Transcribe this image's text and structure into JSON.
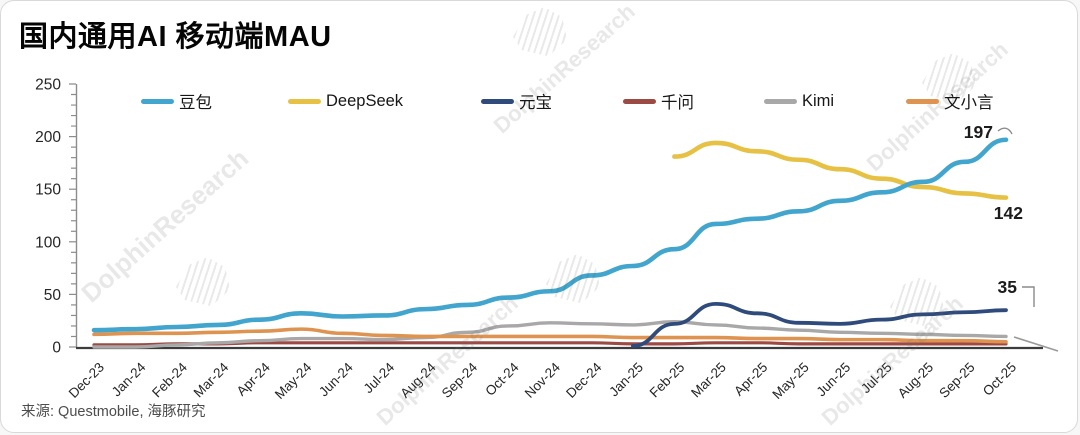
{
  "title": "国内通用AI 移动端MAU",
  "source": "来源: Questmobile, 海豚研究",
  "watermark": {
    "text": "DolphinResearch"
  },
  "chart_data": {
    "type": "line",
    "title": "国内通用AI 移动端MAU",
    "xlabel": "",
    "ylabel": "",
    "ylim": [
      0,
      250
    ],
    "yticks": [
      0,
      50,
      100,
      150,
      200,
      250
    ],
    "grid": false,
    "legend_position": "top",
    "categories": [
      "Dec-23",
      "Jan-24",
      "Feb-24",
      "Mar-24",
      "Apr-24",
      "May-24",
      "Jun-24",
      "Jul-24",
      "Aug-24",
      "Sep-24",
      "Oct-24",
      "Nov-24",
      "Dec-24",
      "Jan-25",
      "Feb-25",
      "Mar-25",
      "Apr-25",
      "May-25",
      "Jun-25",
      "Jul-25",
      "Aug-25",
      "Sep-25",
      "Oct-25"
    ],
    "series": [
      {
        "name": "千问",
        "color": "#9E4A44",
        "values": [
          2,
          2,
          3,
          3,
          4,
          4,
          4,
          4,
          4,
          4,
          4,
          4,
          4,
          3,
          3,
          4,
          4,
          3,
          3,
          3,
          3,
          3,
          3
        ]
      },
      {
        "name": "Kimi",
        "color": "#A8A8A8",
        "values": [
          0,
          0,
          2,
          4,
          6,
          8,
          8,
          7,
          9,
          14,
          20,
          23,
          22,
          21,
          24,
          21,
          18,
          16,
          14,
          13,
          12,
          11,
          10
        ]
      },
      {
        "name": "文小言",
        "color": "#DE9450",
        "values": [
          12,
          13,
          13,
          14,
          15,
          17,
          13,
          11,
          10,
          10,
          10,
          10,
          10,
          9,
          9,
          9,
          8,
          8,
          7,
          7,
          6,
          6,
          5
        ]
      },
      {
        "name": "DeepSeek",
        "color": "#E6C143",
        "values": [
          null,
          null,
          null,
          null,
          null,
          null,
          null,
          null,
          null,
          null,
          null,
          null,
          null,
          null,
          181,
          194,
          186,
          178,
          169,
          160,
          152,
          146,
          142
        ]
      },
      {
        "name": "元宝",
        "color": "#2F4B7C",
        "values": [
          null,
          null,
          null,
          null,
          null,
          null,
          null,
          null,
          null,
          null,
          null,
          null,
          null,
          1,
          22,
          41,
          32,
          23,
          22,
          26,
          31,
          33,
          35
        ]
      },
      {
        "name": "豆包",
        "color": "#41A5CD",
        "values": [
          16,
          17,
          19,
          21,
          26,
          32,
          29,
          30,
          36,
          40,
          47,
          53,
          68,
          77,
          93,
          117,
          122,
          129,
          139,
          147,
          157,
          176,
          197
        ]
      }
    ],
    "legend_order": [
      "豆包",
      "DeepSeek",
      "元宝",
      "千问",
      "Kimi",
      "文小言"
    ],
    "annotations": [
      {
        "series": "豆包",
        "text": "197"
      },
      {
        "series": "DeepSeek",
        "text": "142"
      },
      {
        "series": "元宝",
        "text": "35"
      }
    ]
  }
}
